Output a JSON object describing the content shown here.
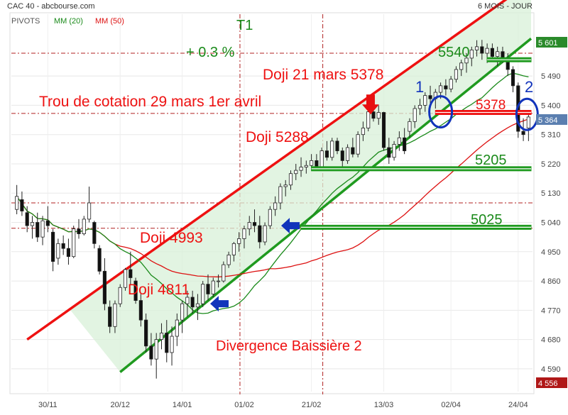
{
  "header": {
    "title": "CAC 40 - abcbourse.com",
    "period": "6 MOIS - JOUR"
  },
  "legend": [
    {
      "label": "PIVOTS",
      "color": "#555555"
    },
    {
      "label": "MM (20)",
      "color": "#1a8a1a"
    },
    {
      "label": "MM (50)",
      "color": "#dd1111"
    }
  ],
  "colors": {
    "channel_upper": "#ee1111",
    "channel_lower": "#1f9a1f",
    "channel_fill": "#d8f0d8",
    "support": "#1f9a1f",
    "resistance": "#ee1111",
    "annotation_red": "#ee1111",
    "annotation_green": "#1f8a1f",
    "arrow_blue": "#1133bb",
    "circle_blue": "#1133bb",
    "price_label_green": "#2a8a2a",
    "price_label_red": "#b01818"
  },
  "annotations": {
    "t1": "T1",
    "pct": "+ 0.3 %",
    "doji_5378": "Doji 21 mars 5378",
    "trou": "Trou de cotation 29 mars 1er avril",
    "doji_5288": "Doji 5288",
    "doji_4993": "Doji 4993",
    "doji_4811": "Doji 4811",
    "divergence": "Divergence Baissière 2",
    "lvl_5540": "5540",
    "lvl_5378": "5378",
    "lvl_5205": "5205",
    "lvl_5025": "5025",
    "circle_1": "1",
    "circle_2": "2"
  },
  "price_labels": {
    "high": "5 601",
    "last": "5 364",
    "low": "4 556"
  },
  "chart_data": {
    "type": "candlestick",
    "title": "CAC 40 - abcbourse.com",
    "period": "6 MOIS - JOUR",
    "ylim": [
      4520,
      5680
    ],
    "y_ticks": [
      {
        "label": "5 490",
        "value": 5490
      },
      {
        "label": "5 400",
        "value": 5400
      },
      {
        "label": "5 310",
        "value": 5310
      },
      {
        "label": "5 220",
        "value": 5220
      },
      {
        "label": "5 130",
        "value": 5130
      },
      {
        "label": "5 040",
        "value": 5040
      },
      {
        "label": "4 950",
        "value": 4950
      },
      {
        "label": "4 860",
        "value": 4860
      },
      {
        "label": "4 770",
        "value": 4770
      },
      {
        "label": "4 680",
        "value": 4680
      },
      {
        "label": "4 590",
        "value": 4590
      }
    ],
    "x_ticks": [
      {
        "label": "30/11",
        "index": 6
      },
      {
        "label": "20/12",
        "index": 20
      },
      {
        "label": "14/01",
        "index": 32
      },
      {
        "label": "01/02",
        "index": 44
      },
      {
        "label": "21/02",
        "index": 57
      },
      {
        "label": "13/03",
        "index": 71
      },
      {
        "label": "02/04",
        "index": 84
      },
      {
        "label": "24/04",
        "index": 97
      }
    ],
    "pivots_price": [
      5560,
      5375,
      5100,
      5022
    ],
    "pivot_dates": [
      "01/02",
      "21/02"
    ],
    "supports": [
      5540,
      5378,
      5205,
      5025
    ],
    "resistance": 5378,
    "series": [
      {
        "name": "MM (20)",
        "color": "#1a8a1a"
      },
      {
        "name": "MM (50)",
        "color": "#dd1111"
      }
    ],
    "candles": [
      [
        5080,
        5155,
        5065,
        5120
      ],
      [
        5110,
        5135,
        5060,
        5075
      ],
      [
        5070,
        5090,
        5010,
        5030
      ],
      [
        5030,
        5060,
        4990,
        5040
      ],
      [
        5040,
        5070,
        4980,
        4995
      ],
      [
        4995,
        5060,
        4970,
        5045
      ],
      [
        5045,
        5090,
        5010,
        5030
      ],
      [
        5010,
        5020,
        4890,
        4920
      ],
      [
        4930,
        4990,
        4910,
        4975
      ],
      [
        4975,
        5000,
        4940,
        4960
      ],
      [
        4960,
        4990,
        4910,
        4935
      ],
      [
        4935,
        5030,
        4930,
        5020
      ],
      [
        5020,
        5050,
        4990,
        5005
      ],
      [
        5005,
        5060,
        5000,
        5050
      ],
      [
        5050,
        5150,
        5040,
        5100
      ],
      [
        5040,
        5045,
        4960,
        4975
      ],
      [
        4960,
        4970,
        4880,
        4890
      ],
      [
        4890,
        4930,
        4770,
        4790
      ],
      [
        4780,
        4800,
        4700,
        4720
      ],
      [
        4720,
        4800,
        4700,
        4790
      ],
      [
        4790,
        4850,
        4780,
        4840
      ],
      [
        4840,
        4900,
        4830,
        4895
      ],
      [
        4895,
        4950,
        4850,
        4870
      ],
      [
        4860,
        4870,
        4790,
        4800
      ],
      [
        4800,
        4820,
        4720,
        4740
      ],
      [
        4740,
        4760,
        4640,
        4660
      ],
      [
        4660,
        4700,
        4600,
        4620
      ],
      [
        4620,
        4700,
        4560,
        4680
      ],
      [
        4680,
        4730,
        4650,
        4700
      ],
      [
        4700,
        4740,
        4610,
        4640
      ],
      [
        4640,
        4720,
        4600,
        4690
      ],
      [
        4690,
        4760,
        4660,
        4740
      ],
      [
        4740,
        4800,
        4700,
        4790
      ],
      [
        4790,
        4830,
        4750,
        4810
      ],
      [
        4810,
        4830,
        4760,
        4780
      ],
      [
        4780,
        4820,
        4740,
        4790
      ],
      [
        4790,
        4860,
        4780,
        4850
      ],
      [
        4850,
        4880,
        4800,
        4820
      ],
      [
        4820,
        4870,
        4810,
        4860
      ],
      [
        4860,
        4880,
        4840,
        4860
      ],
      [
        4860,
        4920,
        4855,
        4910
      ],
      [
        4910,
        4950,
        4900,
        4940
      ],
      [
        4940,
        4980,
        4920,
        4975
      ],
      [
        4975,
        5010,
        4950,
        4990
      ],
      [
        4990,
        5030,
        4960,
        5020
      ],
      [
        5020,
        5060,
        5000,
        5040
      ],
      [
        5040,
        5080,
        5010,
        5030
      ],
      [
        5030,
        5060,
        4960,
        4980
      ],
      [
        4980,
        5040,
        4970,
        5030
      ],
      [
        5030,
        5090,
        5020,
        5080
      ],
      [
        5080,
        5120,
        5060,
        5100
      ],
      [
        5100,
        5160,
        5080,
        5150
      ],
      [
        5150,
        5170,
        5120,
        5155
      ],
      [
        5155,
        5200,
        5140,
        5190
      ],
      [
        5190,
        5220,
        5170,
        5200
      ],
      [
        5200,
        5240,
        5180,
        5210
      ],
      [
        5210,
        5230,
        5190,
        5215
      ],
      [
        5215,
        5250,
        5200,
        5230
      ],
      [
        5230,
        5250,
        5200,
        5210
      ],
      [
        5210,
        5270,
        5200,
        5260
      ],
      [
        5260,
        5290,
        5230,
        5240
      ],
      [
        5240,
        5300,
        5230,
        5290
      ],
      [
        5290,
        5300,
        5250,
        5260
      ],
      [
        5260,
        5270,
        5200,
        5230
      ],
      [
        5230,
        5280,
        5220,
        5270
      ],
      [
        5270,
        5300,
        5240,
        5250
      ],
      [
        5250,
        5320,
        5240,
        5310
      ],
      [
        5310,
        5350,
        5290,
        5330
      ],
      [
        5330,
        5390,
        5320,
        5380
      ],
      [
        5380,
        5410,
        5350,
        5360
      ],
      [
        5360,
        5400,
        5340,
        5378
      ],
      [
        5378,
        5380,
        5260,
        5270
      ],
      [
        5270,
        5300,
        5220,
        5240
      ],
      [
        5240,
        5290,
        5230,
        5280
      ],
      [
        5280,
        5320,
        5260,
        5300
      ],
      [
        5300,
        5330,
        5250,
        5260
      ],
      [
        5320,
        5360,
        5300,
        5350
      ],
      [
        5350,
        5400,
        5330,
        5390
      ],
      [
        5390,
        5420,
        5370,
        5400
      ],
      [
        5400,
        5440,
        5380,
        5430
      ],
      [
        5430,
        5460,
        5400,
        5420
      ],
      [
        5420,
        5450,
        5390,
        5440
      ],
      [
        5440,
        5470,
        5420,
        5460
      ],
      [
        5460,
        5480,
        5430,
        5450
      ],
      [
        5450,
        5490,
        5440,
        5480
      ],
      [
        5480,
        5520,
        5470,
        5510
      ],
      [
        5510,
        5540,
        5490,
        5530
      ],
      [
        5530,
        5560,
        5500,
        5545
      ],
      [
        5545,
        5580,
        5520,
        5570
      ],
      [
        5570,
        5600,
        5550,
        5580
      ],
      [
        5580,
        5601,
        5540,
        5560
      ],
      [
        5560,
        5590,
        5530,
        5575
      ],
      [
        5575,
        5590,
        5540,
        5550
      ],
      [
        5550,
        5580,
        5520,
        5565
      ],
      [
        5565,
        5580,
        5530,
        5545
      ],
      [
        5545,
        5560,
        5490,
        5510
      ],
      [
        5510,
        5520,
        5440,
        5460
      ],
      [
        5460,
        5470,
        5300,
        5320
      ],
      [
        5320,
        5360,
        5290,
        5310
      ],
      [
        5330,
        5380,
        5290,
        5364
      ]
    ],
    "channel": {
      "upper": [
        [
          4680,
          2
        ],
        [
          5560,
          80
        ]
      ],
      "lower": [
        [
          4580,
          20
        ],
        [
          5560,
          96
        ]
      ]
    }
  }
}
